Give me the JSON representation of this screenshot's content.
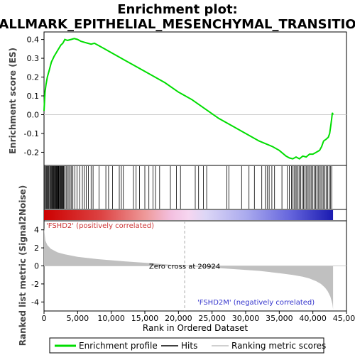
{
  "chart_data": {
    "type": "line",
    "title_line1": "Enrichment plot:",
    "title_line2": "HALLMARK_EPITHELIAL_MESENCHYMAL_TRANSITION",
    "top_ylabel": "Enrichment score (ES)",
    "bottom_ylabel_line1": "Ranked list metric (Signal2Noise)",
    "xlabel": "Rank in Ordered Dataset",
    "x_range": [
      0,
      45000
    ],
    "x_ticks": [
      0,
      5000,
      10000,
      15000,
      20000,
      25000,
      30000,
      35000,
      40000,
      45000
    ],
    "x_tick_labels": [
      "0",
      "5,000",
      "10,000",
      "15,000",
      "20,000",
      "25,000",
      "30,000",
      "35,000",
      "40,000",
      "45,000"
    ],
    "es_ylim": [
      -0.27,
      0.44
    ],
    "es_ticks": [
      -0.2,
      -0.1,
      0.0,
      0.1,
      0.2,
      0.3,
      0.4
    ],
    "es_tick_labels": [
      "-0.2",
      "-0.1",
      "0.0",
      "0.1",
      "0.2",
      "0.3",
      "0.4"
    ],
    "metric_ylim": [
      -5,
      5
    ],
    "metric_ticks": [
      -4,
      -2,
      0,
      2,
      4
    ],
    "metric_tick_labels": [
      "-4",
      "-2",
      "0",
      "2",
      "4"
    ],
    "series": [
      {
        "name": "Enrichment profile",
        "color": "#00dd00",
        "x": [
          0,
          150,
          300,
          500,
          800,
          1100,
          1500,
          2000,
          2500,
          2800,
          3100,
          3500,
          4000,
          4500,
          5000,
          5500,
          6000,
          6500,
          7000,
          7500,
          8000,
          9000,
          10000,
          11000,
          12000,
          14000,
          16000,
          18000,
          20000,
          22000,
          24000,
          26000,
          28000,
          30000,
          32000,
          34000,
          35000,
          36000,
          36500,
          37000,
          37500,
          38000,
          38500,
          39000,
          39500,
          40000,
          40500,
          41000,
          41300,
          41600,
          42000,
          42300,
          42500,
          42700,
          42800,
          42900,
          43000
        ],
        "y": [
          0.02,
          0.12,
          0.16,
          0.2,
          0.24,
          0.28,
          0.31,
          0.34,
          0.37,
          0.38,
          0.4,
          0.395,
          0.4,
          0.405,
          0.4,
          0.39,
          0.385,
          0.38,
          0.375,
          0.38,
          0.37,
          0.35,
          0.33,
          0.31,
          0.29,
          0.25,
          0.21,
          0.17,
          0.12,
          0.08,
          0.03,
          -0.02,
          -0.06,
          -0.1,
          -0.14,
          -0.17,
          -0.19,
          -0.22,
          -0.23,
          -0.235,
          -0.225,
          -0.235,
          -0.22,
          -0.225,
          -0.21,
          -0.21,
          -0.2,
          -0.19,
          -0.17,
          -0.14,
          -0.13,
          -0.12,
          -0.1,
          -0.05,
          -0.02,
          0.01,
          0.0
        ]
      },
      {
        "name": "Ranking metric scores",
        "color": "#c0c0c0",
        "x": [
          0,
          200,
          500,
          1000,
          2000,
          3000,
          5000,
          8000,
          12000,
          16000,
          20000,
          20924,
          24000,
          28000,
          32000,
          35000,
          37000,
          38500,
          39500,
          40500,
          41200,
          41800,
          42200,
          42600,
          42900,
          43000
        ],
        "y": [
          4.2,
          2.8,
          2.3,
          1.9,
          1.5,
          1.3,
          1.0,
          0.75,
          0.5,
          0.3,
          0.05,
          0.0,
          -0.15,
          -0.35,
          -0.55,
          -0.8,
          -1.0,
          -1.2,
          -1.4,
          -1.7,
          -2.0,
          -2.4,
          -2.8,
          -3.4,
          -4.2,
          -4.8
        ]
      }
    ],
    "hits": [
      120,
      240,
      360,
      480,
      560,
      700,
      820,
      950,
      1050,
      1150,
      1250,
      1330,
      1420,
      1500,
      1600,
      1700,
      1800,
      1880,
      1960,
      2050,
      2120,
      2200,
      2300,
      2400,
      2480,
      2560,
      2650,
      2750,
      2850,
      2950,
      3100,
      3300,
      3500,
      3700,
      3900,
      4100,
      4300,
      4600,
      4900,
      5300,
      5700,
      6000,
      6300,
      6600,
      7000,
      7300,
      8200,
      9200,
      9600,
      10200,
      11200,
      11500,
      11800,
      13300,
      13700,
      14200,
      15000,
      15600,
      16200,
      16600,
      17200,
      18800,
      19700,
      20300,
      22500,
      23000,
      23700,
      24200,
      27200,
      27500,
      29400,
      30500,
      31300,
      32400,
      32900,
      33200,
      33500,
      33900,
      34300,
      35400,
      36200,
      36500,
      36800,
      37000,
      37200,
      37400,
      37600,
      37800,
      38000,
      38200,
      38400,
      38600,
      38800,
      39000,
      39200,
      39400,
      39600,
      39800,
      40000,
      40200,
      40400,
      40600,
      40800,
      41000,
      41200,
      41400,
      41600,
      41800,
      42000,
      42200,
      42400,
      42600,
      42800
    ],
    "zero_cross_rank": 20924,
    "zero_cross_label": "Zero cross at 20924",
    "positive_label": "'FSHD2' (positively correlated)",
    "negative_label": "'FSHD2M' (negatively correlated)",
    "positive_label_color": "#cc3333",
    "negative_label_color": "#3333cc",
    "legend": {
      "enrichment": "Enrichment profile",
      "hits": "Hits",
      "ranking": "Ranking metric scores"
    }
  }
}
